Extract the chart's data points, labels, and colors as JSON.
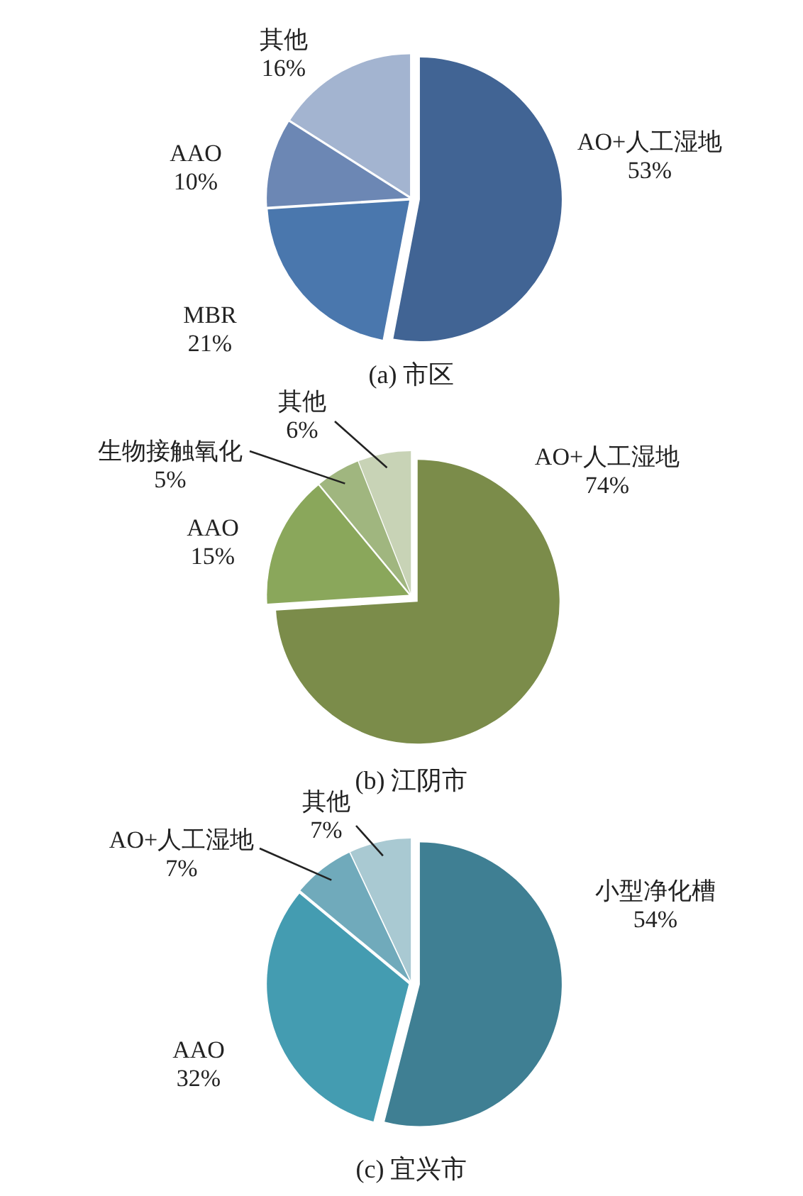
{
  "chart_data": [
    {
      "type": "pie",
      "title": "(a) 市区",
      "categories": [
        "AO+人工湿地",
        "MBR",
        "AAO",
        "其他"
      ],
      "values": [
        53,
        21,
        10,
        16
      ],
      "value_labels": [
        "53%",
        "21%",
        "10%",
        "16%"
      ],
      "colors": [
        "#416494",
        "#4a77ad",
        "#6c87b4",
        "#a3b4d0"
      ]
    },
    {
      "type": "pie",
      "title": "(b) 江阴市",
      "categories": [
        "AO+人工湿地",
        "AAO",
        "生物接触氧化",
        "其他"
      ],
      "values": [
        74,
        15,
        5,
        6
      ],
      "value_labels": [
        "74%",
        "15%",
        "5%",
        "6%"
      ],
      "colors": [
        "#7b8c4a",
        "#8aa75b",
        "#a0b67f",
        "#c8d3b6"
      ]
    },
    {
      "type": "pie",
      "title": "(c) 宜兴市",
      "categories": [
        "小型净化槽",
        "AAO",
        "AO+人工湿地",
        "其他"
      ],
      "values": [
        54,
        32,
        7,
        7
      ],
      "value_labels": [
        "54%",
        "32%",
        "7%",
        "7%"
      ],
      "colors": [
        "#3f7f93",
        "#449cb1",
        "#70aabb",
        "#a9c9d2"
      ]
    }
  ]
}
